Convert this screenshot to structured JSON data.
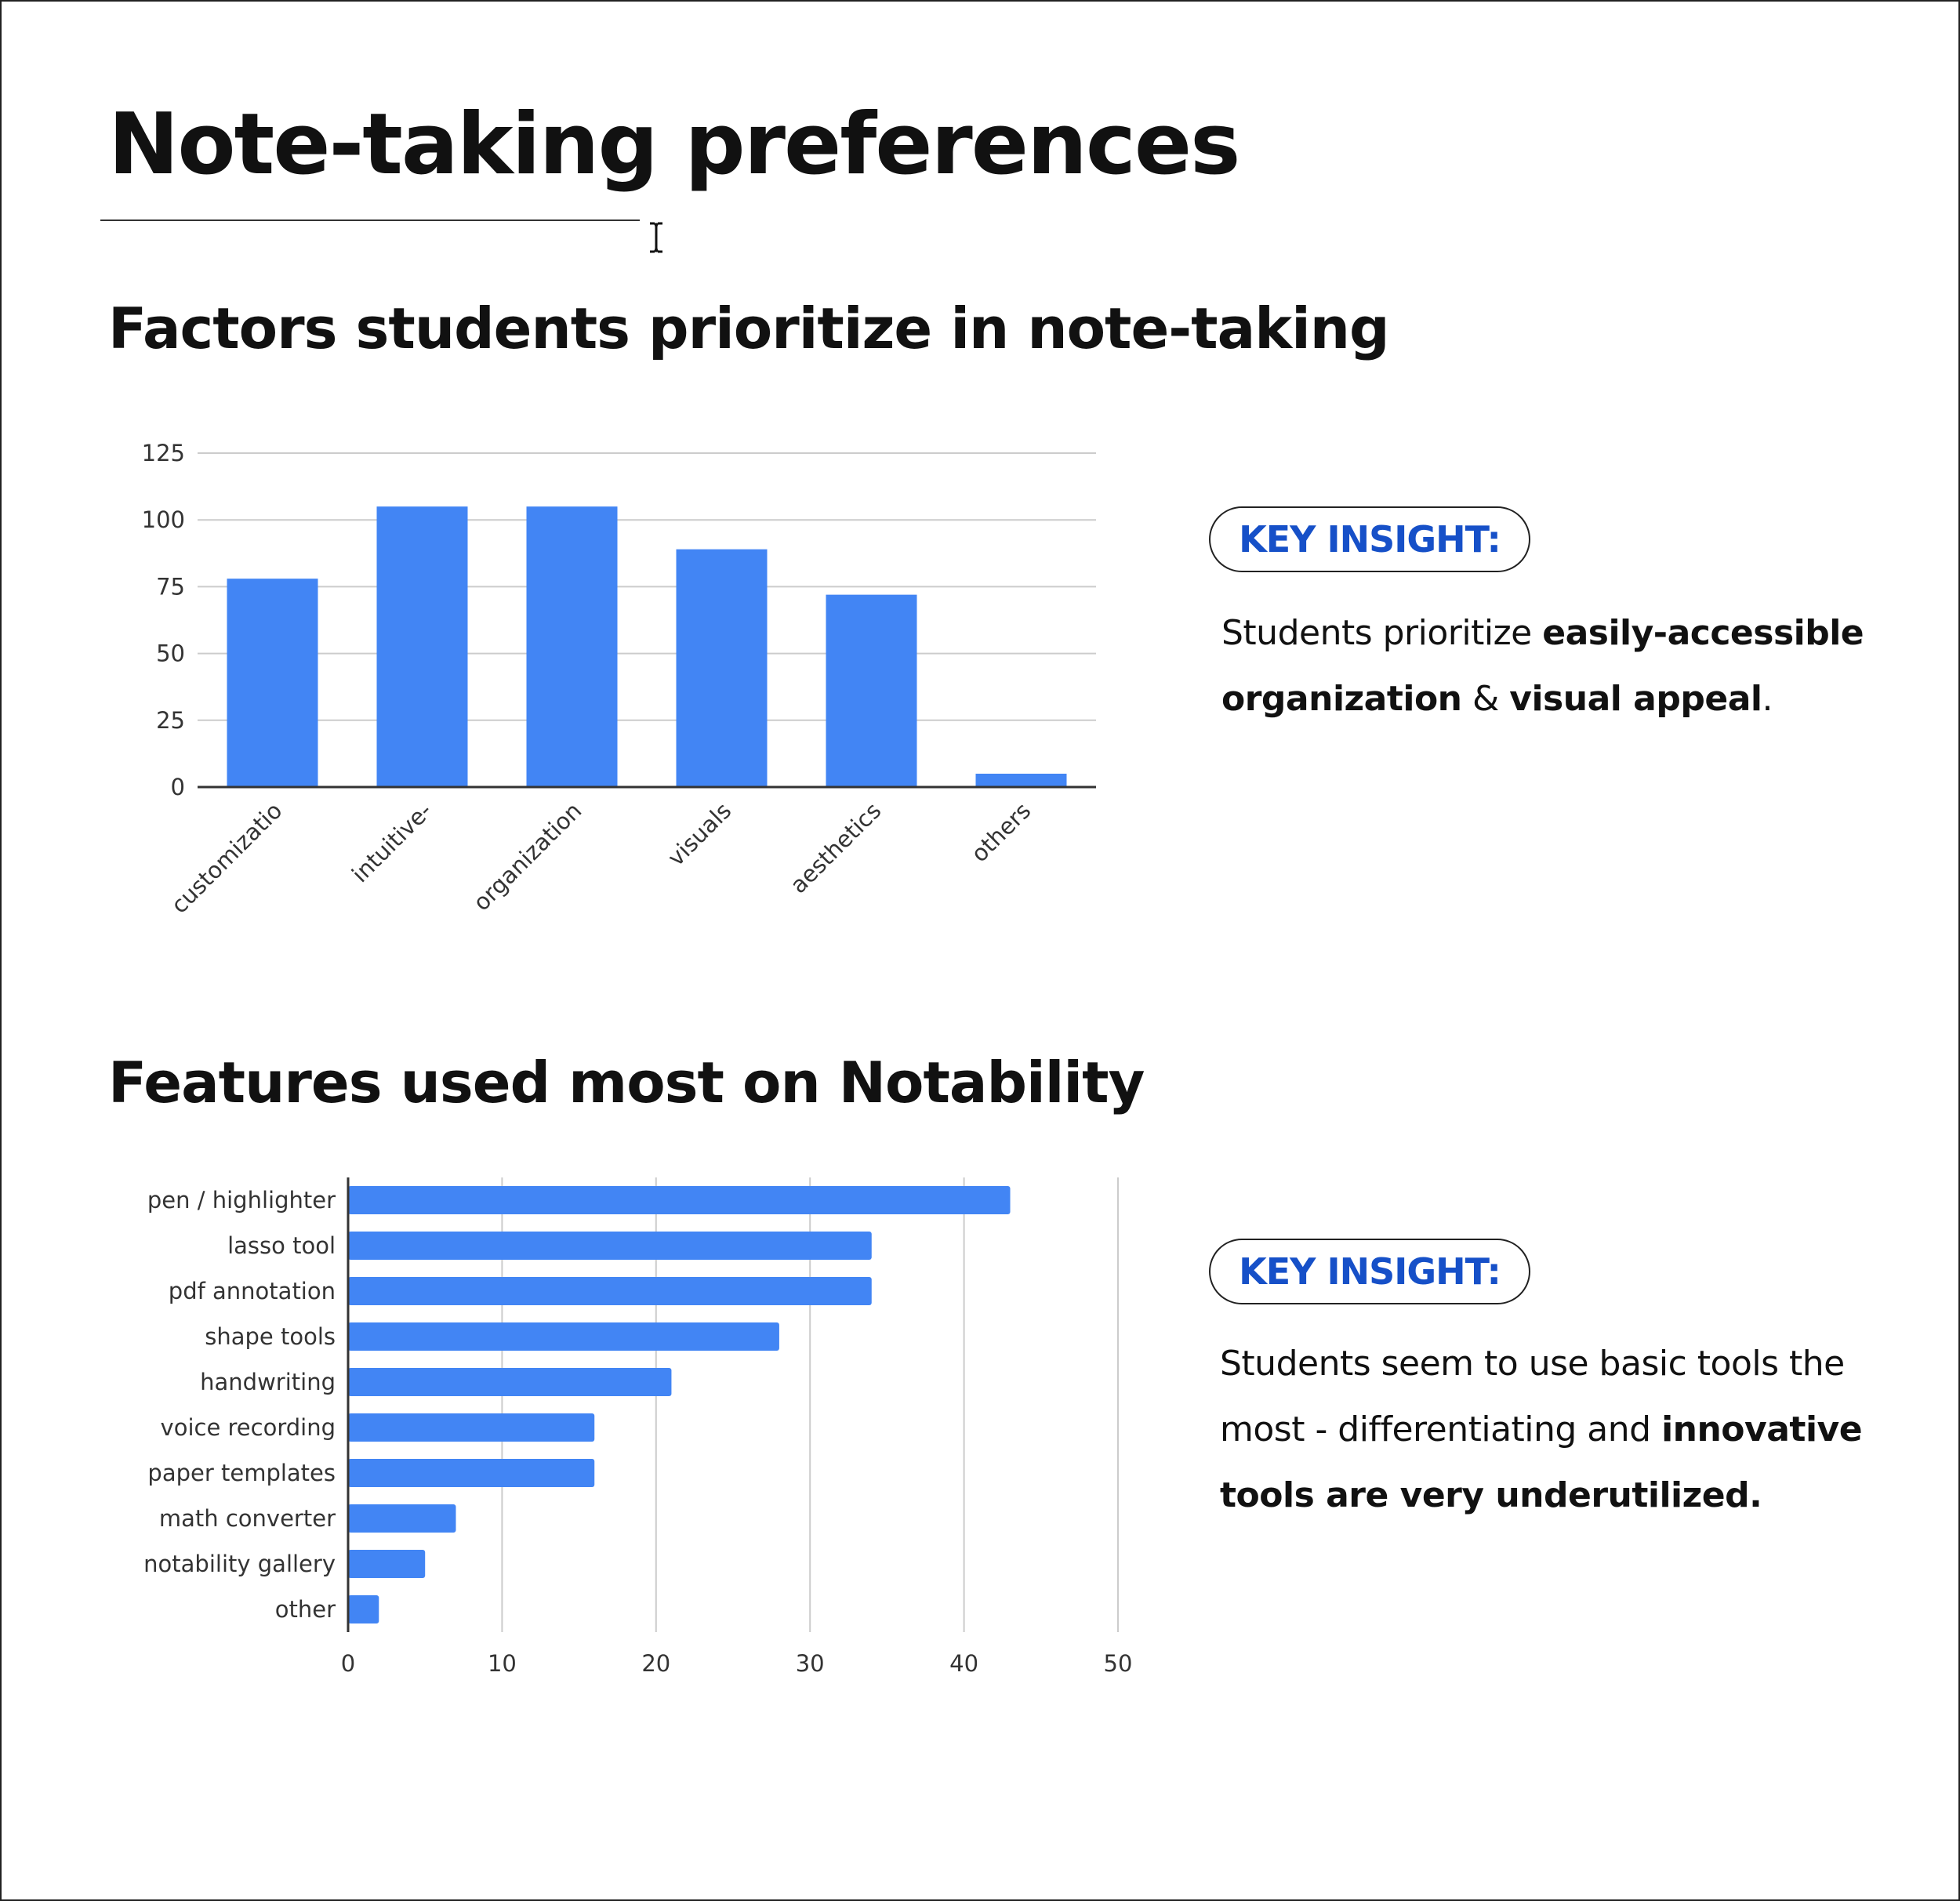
{
  "title": "Note-taking preferences",
  "sections": [
    {
      "heading": "Factors students prioritize in note-taking",
      "insight_label": "KEY INSIGHT:",
      "insight": {
        "t1": "Students prioritize ",
        "b1": "easily-accessible organization",
        "t2": " & ",
        "b2": "visual appeal",
        "t3": "."
      }
    },
    {
      "heading": "Features used most on Notability",
      "insight_label": "KEY INSIGHT:",
      "insight": {
        "t1": "Students seem to use basic tools the most - differentiating and ",
        "b1": "innovative tools are very underutilized."
      }
    }
  ],
  "colors": {
    "bar": "#4285f4",
    "grid": "#cccccc",
    "axis": "#333333",
    "insight_label": "#1650c8"
  },
  "icons": {
    "text_cursor": "i-beam-cursor-icon"
  },
  "chart_data": [
    {
      "type": "bar",
      "orientation": "vertical",
      "categories": [
        "customizatio",
        "intuitive-",
        "organization",
        "visuals",
        "aesthetics",
        "others"
      ],
      "values": [
        78,
        105,
        105,
        89,
        72,
        5
      ],
      "ylim": [
        0,
        125
      ],
      "yticks": [
        0,
        25,
        50,
        75,
        100,
        125
      ],
      "xlabel": "",
      "ylabel": "",
      "grid": true
    },
    {
      "type": "bar",
      "orientation": "horizontal",
      "categories": [
        "pen / highlighter",
        "lasso tool",
        "pdf annotation",
        "shape tools",
        "handwriting",
        "voice recording",
        "paper templates",
        "math converter",
        "notability gallery",
        "other"
      ],
      "values": [
        43,
        34,
        34,
        28,
        21,
        16,
        16,
        7,
        5,
        2
      ],
      "xlim": [
        0,
        50
      ],
      "xticks": [
        0,
        10,
        20,
        30,
        40,
        50
      ],
      "xlabel": "",
      "ylabel": "",
      "grid": true
    }
  ]
}
